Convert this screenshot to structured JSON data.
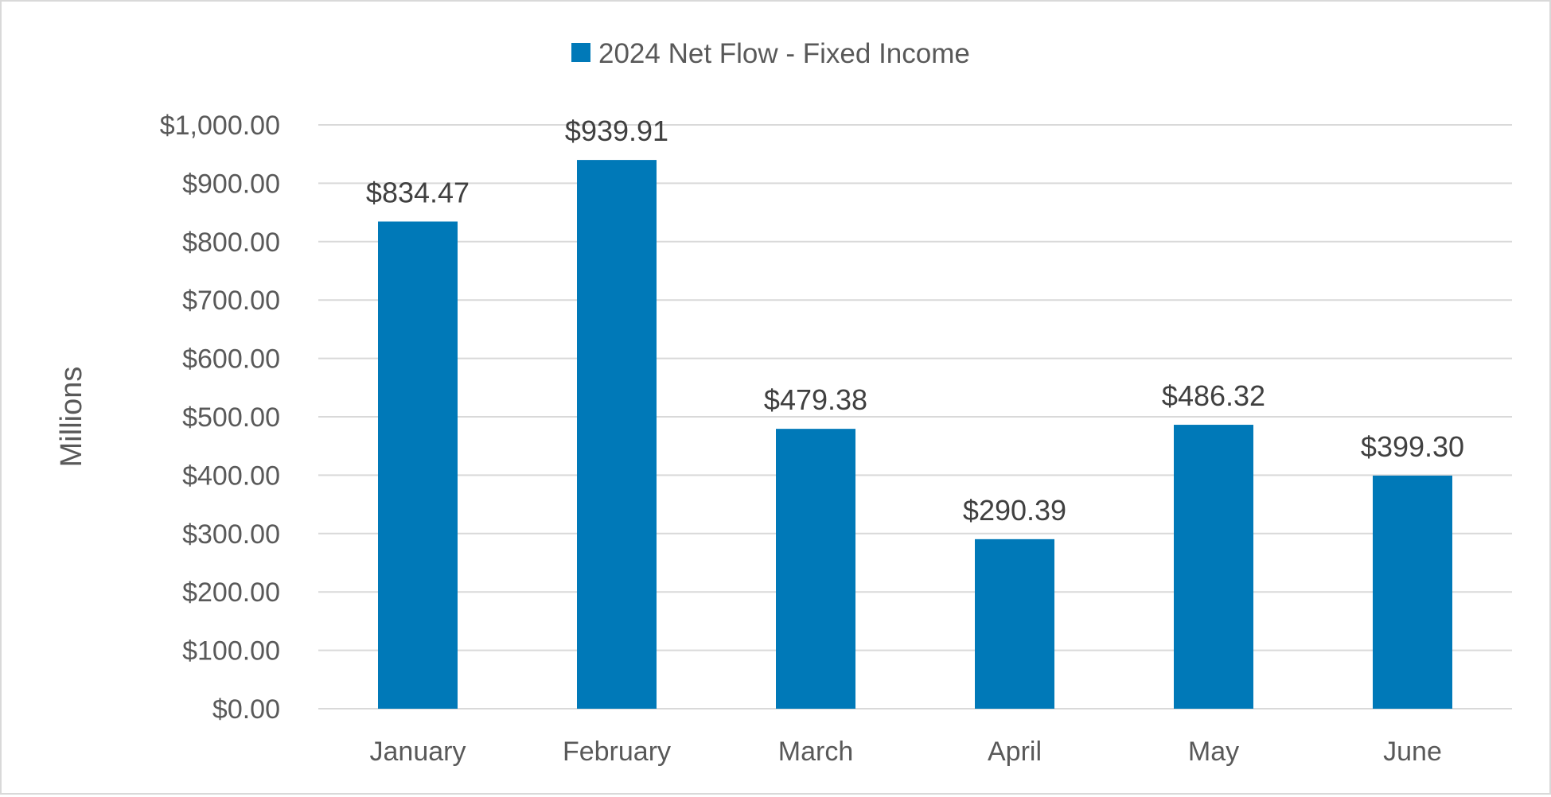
{
  "chart_data": {
    "type": "bar",
    "categories": [
      "January",
      "February",
      "March",
      "April",
      "May",
      "June"
    ],
    "series": [
      {
        "name": "2024 Net Flow - Fixed Income",
        "values": [
          834.47,
          939.91,
          479.38,
          290.39,
          486.32,
          399.3
        ],
        "data_labels": [
          "$834.47",
          "$939.91",
          "$479.38",
          "$290.39",
          "$486.32",
          "$399.30"
        ],
        "color": "#0079B8"
      }
    ],
    "title": "",
    "xlabel": "",
    "ylabel": "Millions",
    "ylim": [
      0,
      1000
    ],
    "yticks": [
      0,
      100,
      200,
      300,
      400,
      500,
      600,
      700,
      800,
      900,
      1000
    ],
    "ytick_labels": [
      "$0.00",
      "$100.00",
      "$200.00",
      "$300.00",
      "$400.00",
      "$500.00",
      "$600.00",
      "$700.00",
      "$800.00",
      "$900.00",
      "$1,000.00"
    ],
    "grid": true,
    "legend_position": "top-center",
    "colors": {
      "gridline": "#d9d9d9",
      "text": "#595959",
      "border": "#d9d9d9"
    }
  }
}
